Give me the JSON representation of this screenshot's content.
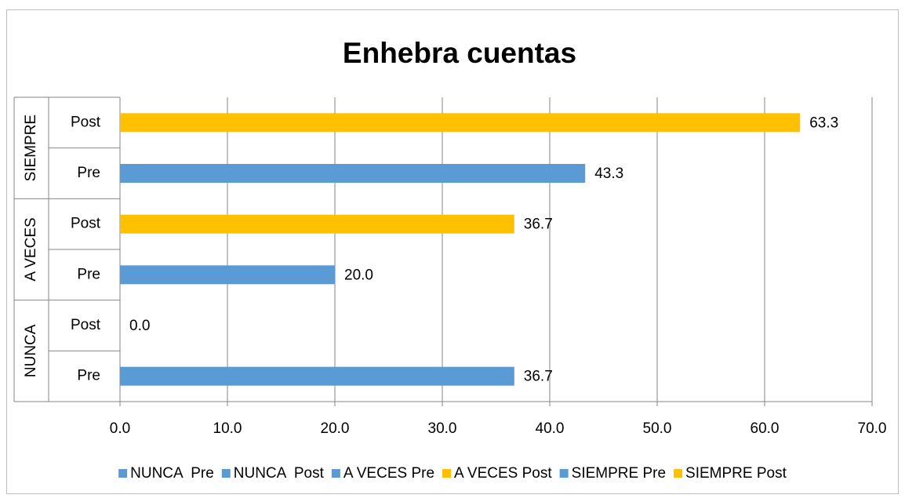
{
  "chart_data": {
    "type": "bar",
    "orientation": "horizontal",
    "title": "Enhebra cuentas",
    "categories": [
      "Pre",
      "Post",
      "Pre",
      "Post",
      "Pre",
      "Post"
    ],
    "groups": [
      "NUNCA",
      "A VECES",
      "SIEMPRE"
    ],
    "series": [
      {
        "name": "NUNCA  Pre",
        "color": "#5b9bd5",
        "values": [
          36.7,
          null,
          null,
          null,
          null,
          null
        ],
        "value_labels": [
          "36.7",
          null,
          null,
          null,
          null,
          null
        ]
      },
      {
        "name": "NUNCA  Post",
        "color": "#5b9bd5",
        "values": [
          null,
          0.0,
          null,
          null,
          null,
          null
        ],
        "value_labels": [
          null,
          "0.0",
          null,
          null,
          null,
          null
        ]
      },
      {
        "name": "A VECES Pre",
        "color": "#5b9bd5",
        "values": [
          null,
          null,
          20.0,
          null,
          null,
          null
        ],
        "value_labels": [
          null,
          null,
          "20.0",
          null,
          null,
          null
        ]
      },
      {
        "name": "A VECES Post",
        "color": "#ffc000",
        "values": [
          null,
          null,
          null,
          36.7,
          null,
          null
        ],
        "value_labels": [
          null,
          null,
          null,
          "36.7",
          null,
          null
        ]
      },
      {
        "name": "SIEMPRE Pre",
        "color": "#5b9bd5",
        "values": [
          null,
          null,
          null,
          null,
          43.3,
          null
        ],
        "value_labels": [
          null,
          null,
          null,
          null,
          "43.3",
          null
        ]
      },
      {
        "name": "SIEMPRE Post",
        "color": "#ffc000",
        "values": [
          null,
          null,
          null,
          null,
          null,
          63.3
        ],
        "value_labels": [
          null,
          null,
          null,
          null,
          null,
          "63.3"
        ]
      }
    ],
    "xlim": [
      0,
      70
    ],
    "xticks": [
      {
        "value": 0,
        "label": "0.0"
      },
      {
        "value": 10,
        "label": "10.0"
      },
      {
        "value": 20,
        "label": "20.0"
      },
      {
        "value": 30,
        "label": "30.0"
      },
      {
        "value": 40,
        "label": "40.0"
      },
      {
        "value": 50,
        "label": "50.0"
      },
      {
        "value": 60,
        "label": "60.0"
      },
      {
        "value": 70,
        "label": "70.0"
      }
    ],
    "grid": true,
    "legend": "bottom"
  }
}
